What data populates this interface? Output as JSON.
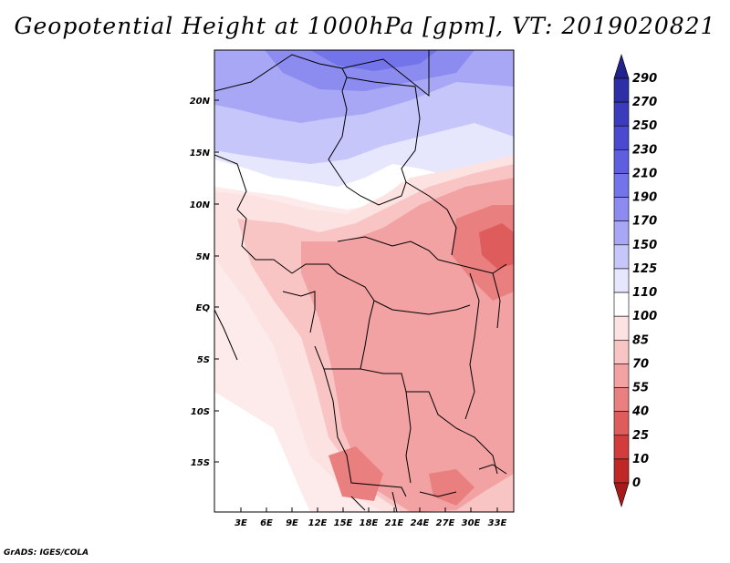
{
  "title": "Geopotential Height at 1000hPa [gpm], VT: 2019020821",
  "credit": "GrADS: IGES/COLA",
  "map": {
    "lon_labels": [
      "3E",
      "6E",
      "9E",
      "12E",
      "15E",
      "18E",
      "21E",
      "24E",
      "27E",
      "30E",
      "33E"
    ],
    "lat_labels": [
      "20N",
      "15N",
      "10N",
      "5N",
      "EQ",
      "5S",
      "10S",
      "15S"
    ]
  },
  "colorbar": {
    "labels": [
      "290",
      "270",
      "250",
      "230",
      "210",
      "190",
      "170",
      "150",
      "125",
      "110",
      "100",
      "85",
      "70",
      "55",
      "40",
      "25",
      "10",
      "0"
    ],
    "colors": [
      "#22228c",
      "#2e2ea6",
      "#3b3bbd",
      "#4a4ad0",
      "#5e5ee0",
      "#7474ea",
      "#8c8cf0",
      "#a7a7f5",
      "#c6c6fa",
      "#e6e6fd",
      "#ffffff",
      "#fde2e2",
      "#f9c4c4",
      "#f2a2a2",
      "#e97f7f",
      "#df5c5c",
      "#d23c3c",
      "#c02828",
      "#a81a1a"
    ]
  }
}
